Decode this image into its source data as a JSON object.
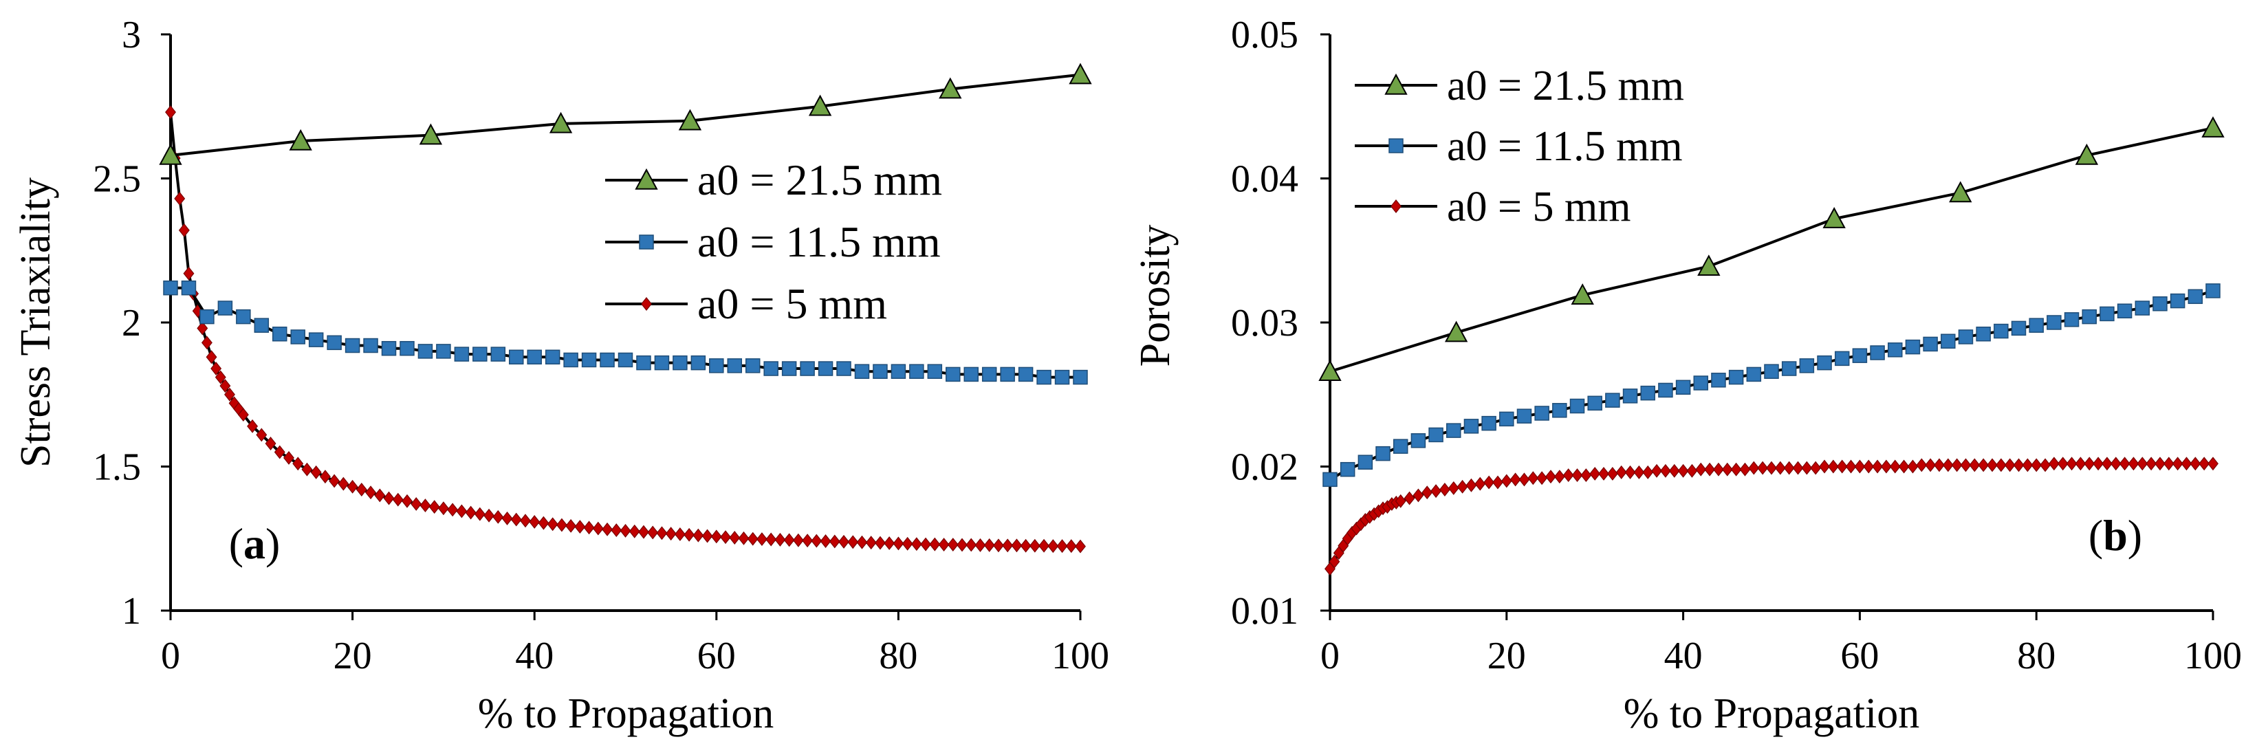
{
  "colors": {
    "green": "#70a246",
    "blue": "#2e75b6",
    "red": "#c00000",
    "axis": "#000000"
  },
  "chart_data": [
    {
      "type": "line",
      "panel_label": "a",
      "title": "",
      "xlabel": "% to Propagation",
      "ylabel": "Stress Triaxiality",
      "xlim": [
        0,
        100
      ],
      "ylim": [
        1,
        3
      ],
      "xticks": [
        0,
        20,
        40,
        60,
        80,
        100
      ],
      "yticks": [
        1,
        1.5,
        2,
        2.5,
        3
      ],
      "ytick_labels": [
        "1",
        "1.5",
        "2",
        "2.5",
        "3"
      ],
      "legend_position": "top-right",
      "series": [
        {
          "name": "a0 = 21.5 mm",
          "marker": "triangle",
          "color": "#70a246",
          "x": [
            0,
            14.3,
            28.6,
            42.9,
            57.1,
            71.4,
            85.7,
            100
          ],
          "y": [
            2.58,
            2.63,
            2.65,
            2.69,
            2.7,
            2.75,
            2.81,
            2.86
          ]
        },
        {
          "name": "a0 = 11.5 mm",
          "marker": "square",
          "color": "#2e75b6",
          "x": [
            0,
            2,
            4,
            6,
            8,
            10,
            12,
            14,
            16,
            18,
            20,
            22,
            24,
            26,
            28,
            30,
            32,
            34,
            36,
            38,
            40,
            42,
            44,
            46,
            48,
            50,
            52,
            54,
            56,
            58,
            60,
            62,
            64,
            66,
            68,
            70,
            72,
            74,
            76,
            78,
            80,
            82,
            84,
            86,
            88,
            90,
            92,
            94,
            96,
            98,
            100
          ],
          "y": [
            2.12,
            2.12,
            2.02,
            2.05,
            2.02,
            1.99,
            1.96,
            1.95,
            1.94,
            1.93,
            1.92,
            1.92,
            1.91,
            1.91,
            1.9,
            1.9,
            1.89,
            1.89,
            1.89,
            1.88,
            1.88,
            1.88,
            1.87,
            1.87,
            1.87,
            1.87,
            1.86,
            1.86,
            1.86,
            1.86,
            1.85,
            1.85,
            1.85,
            1.84,
            1.84,
            1.84,
            1.84,
            1.84,
            1.83,
            1.83,
            1.83,
            1.83,
            1.83,
            1.82,
            1.82,
            1.82,
            1.82,
            1.82,
            1.81,
            1.81,
            1.81
          ]
        },
        {
          "name": "a0 = 5 mm",
          "marker": "diamond",
          "color": "#c00000",
          "x": [
            0,
            0.5,
            1,
            1.5,
            2,
            2.5,
            3,
            3.5,
            4,
            4.5,
            5,
            5.5,
            6,
            6.5,
            7,
            7.5,
            8,
            9,
            10,
            11,
            12,
            13,
            14,
            15,
            16,
            17,
            18,
            19,
            20,
            21,
            22,
            23,
            24,
            25,
            26,
            27,
            28,
            29,
            30,
            31,
            32,
            33,
            34,
            35,
            36,
            37,
            38,
            39,
            40,
            41,
            42,
            43,
            44,
            45,
            46,
            47,
            48,
            49,
            50,
            51,
            52,
            53,
            54,
            55,
            56,
            57,
            58,
            59,
            60,
            61,
            62,
            63,
            64,
            65,
            66,
            67,
            68,
            69,
            70,
            71,
            72,
            73,
            74,
            75,
            76,
            77,
            78,
            79,
            80,
            81,
            82,
            83,
            84,
            85,
            86,
            87,
            88,
            89,
            90,
            91,
            92,
            93,
            94,
            95,
            96,
            97,
            98,
            99,
            100
          ],
          "y": [
            2.73,
            2.57,
            2.43,
            2.32,
            2.17,
            2.1,
            2.04,
            1.98,
            1.93,
            1.88,
            1.84,
            1.81,
            1.78,
            1.75,
            1.72,
            1.7,
            1.68,
            1.64,
            1.61,
            1.58,
            1.55,
            1.53,
            1.51,
            1.49,
            1.48,
            1.465,
            1.45,
            1.44,
            1.43,
            1.42,
            1.41,
            1.4,
            1.39,
            1.385,
            1.38,
            1.37,
            1.365,
            1.36,
            1.355,
            1.35,
            1.345,
            1.34,
            1.335,
            1.33,
            1.325,
            1.32,
            1.316,
            1.312,
            1.308,
            1.304,
            1.3,
            1.297,
            1.294,
            1.291,
            1.288,
            1.285,
            1.282,
            1.279,
            1.277,
            1.275,
            1.273,
            1.271,
            1.269,
            1.267,
            1.265,
            1.263,
            1.261,
            1.259,
            1.257,
            1.255,
            1.253,
            1.251,
            1.249,
            1.248,
            1.247,
            1.246,
            1.245,
            1.244,
            1.243,
            1.242,
            1.241,
            1.24,
            1.239,
            1.238,
            1.237,
            1.236,
            1.235,
            1.234,
            1.233,
            1.232,
            1.231,
            1.23,
            1.23,
            1.229,
            1.229,
            1.228,
            1.228,
            1.227,
            1.227,
            1.226,
            1.226,
            1.226,
            1.225,
            1.225,
            1.225,
            1.224,
            1.224,
            1.224,
            1.223
          ]
        }
      ]
    },
    {
      "type": "line",
      "panel_label": "b",
      "title": "",
      "xlabel": "% to Propagation",
      "ylabel": "Porosity",
      "xlim": [
        0,
        100
      ],
      "ylim": [
        0.01,
        0.05
      ],
      "xticks": [
        0,
        20,
        40,
        60,
        80,
        100
      ],
      "yticks": [
        0.01,
        0.02,
        0.03,
        0.04,
        0.05
      ],
      "ytick_labels": [
        "0.01",
        "0.02",
        "0.03",
        "0.04",
        "0.05"
      ],
      "legend_position": "top-left",
      "series": [
        {
          "name": "a0 = 21.5 mm",
          "marker": "triangle",
          "color": "#70a246",
          "x": [
            0,
            14.3,
            28.6,
            42.9,
            57.1,
            71.4,
            85.7,
            100
          ],
          "y": [
            0.0266,
            0.0293,
            0.0319,
            0.0339,
            0.0372,
            0.039,
            0.0416,
            0.0435
          ]
        },
        {
          "name": "a0 = 11.5 mm",
          "marker": "square",
          "color": "#2e75b6",
          "x": [
            0,
            2,
            4,
            6,
            8,
            10,
            12,
            14,
            16,
            18,
            20,
            22,
            24,
            26,
            28,
            30,
            32,
            34,
            36,
            38,
            40,
            42,
            44,
            46,
            48,
            50,
            52,
            54,
            56,
            58,
            60,
            62,
            64,
            66,
            68,
            70,
            72,
            74,
            76,
            78,
            80,
            82,
            84,
            86,
            88,
            90,
            92,
            94,
            96,
            98,
            100
          ],
          "y": [
            0.0191,
            0.0198,
            0.0203,
            0.0209,
            0.0214,
            0.0218,
            0.0222,
            0.0225,
            0.0228,
            0.023,
            0.0233,
            0.0235,
            0.0237,
            0.0239,
            0.0242,
            0.0244,
            0.0246,
            0.0249,
            0.0251,
            0.0253,
            0.0255,
            0.0258,
            0.026,
            0.0262,
            0.0264,
            0.0266,
            0.0268,
            0.027,
            0.0272,
            0.0275,
            0.0277,
            0.0279,
            0.0281,
            0.0283,
            0.0285,
            0.0287,
            0.029,
            0.0292,
            0.0294,
            0.0296,
            0.0298,
            0.03,
            0.0302,
            0.0304,
            0.0306,
            0.0308,
            0.031,
            0.0313,
            0.0315,
            0.0318,
            0.0322
          ]
        },
        {
          "name": "a0 = 5 mm",
          "marker": "diamond",
          "color": "#c00000",
          "x": [
            0,
            0.5,
            1,
            1.5,
            2,
            2.5,
            3,
            3.5,
            4,
            4.5,
            5,
            5.5,
            6,
            6.5,
            7,
            7.5,
            8,
            9,
            10,
            11,
            12,
            13,
            14,
            15,
            16,
            17,
            18,
            19,
            20,
            21,
            22,
            23,
            24,
            25,
            26,
            27,
            28,
            29,
            30,
            31,
            32,
            33,
            34,
            35,
            36,
            37,
            38,
            39,
            40,
            41,
            42,
            43,
            44,
            45,
            46,
            47,
            48,
            49,
            50,
            51,
            52,
            53,
            54,
            55,
            56,
            57,
            58,
            59,
            60,
            61,
            62,
            63,
            64,
            65,
            66,
            67,
            68,
            69,
            70,
            71,
            72,
            73,
            74,
            75,
            76,
            77,
            78,
            79,
            80,
            81,
            82,
            83,
            84,
            85,
            86,
            87,
            88,
            89,
            90,
            91,
            92,
            93,
            94,
            95,
            96,
            97,
            98,
            99,
            100
          ],
          "y": [
            0.0129,
            0.0134,
            0.014,
            0.0145,
            0.015,
            0.0154,
            0.0157,
            0.016,
            0.0163,
            0.0165,
            0.0167,
            0.0169,
            0.0171,
            0.0172,
            0.0174,
            0.0175,
            0.0176,
            0.0178,
            0.018,
            0.0182,
            0.0183,
            0.0184,
            0.0185,
            0.0186,
            0.0187,
            0.0188,
            0.0189,
            0.0189,
            0.019,
            0.0191,
            0.0191,
            0.0192,
            0.0192,
            0.0193,
            0.0193,
            0.0194,
            0.0194,
            0.0194,
            0.0195,
            0.0195,
            0.0195,
            0.0196,
            0.0196,
            0.0196,
            0.0196,
            0.0197,
            0.0197,
            0.0197,
            0.0197,
            0.0197,
            0.0198,
            0.0198,
            0.0198,
            0.0198,
            0.0198,
            0.0198,
            0.0199,
            0.0199,
            0.0199,
            0.0199,
            0.0199,
            0.0199,
            0.0199,
            0.0199,
            0.02,
            0.02,
            0.02,
            0.02,
            0.02,
            0.02,
            0.02,
            0.02,
            0.02,
            0.02,
            0.02,
            0.0201,
            0.0201,
            0.0201,
            0.0201,
            0.0201,
            0.0201,
            0.0201,
            0.0201,
            0.0201,
            0.0201,
            0.0201,
            0.0201,
            0.0201,
            0.0201,
            0.0201,
            0.0202,
            0.0202,
            0.0202,
            0.0202,
            0.0202,
            0.0202,
            0.0202,
            0.0202,
            0.0202,
            0.0202,
            0.0202,
            0.0202,
            0.0202,
            0.0202,
            0.0202,
            0.0202,
            0.0202,
            0.0202,
            0.0202
          ]
        }
      ]
    }
  ]
}
